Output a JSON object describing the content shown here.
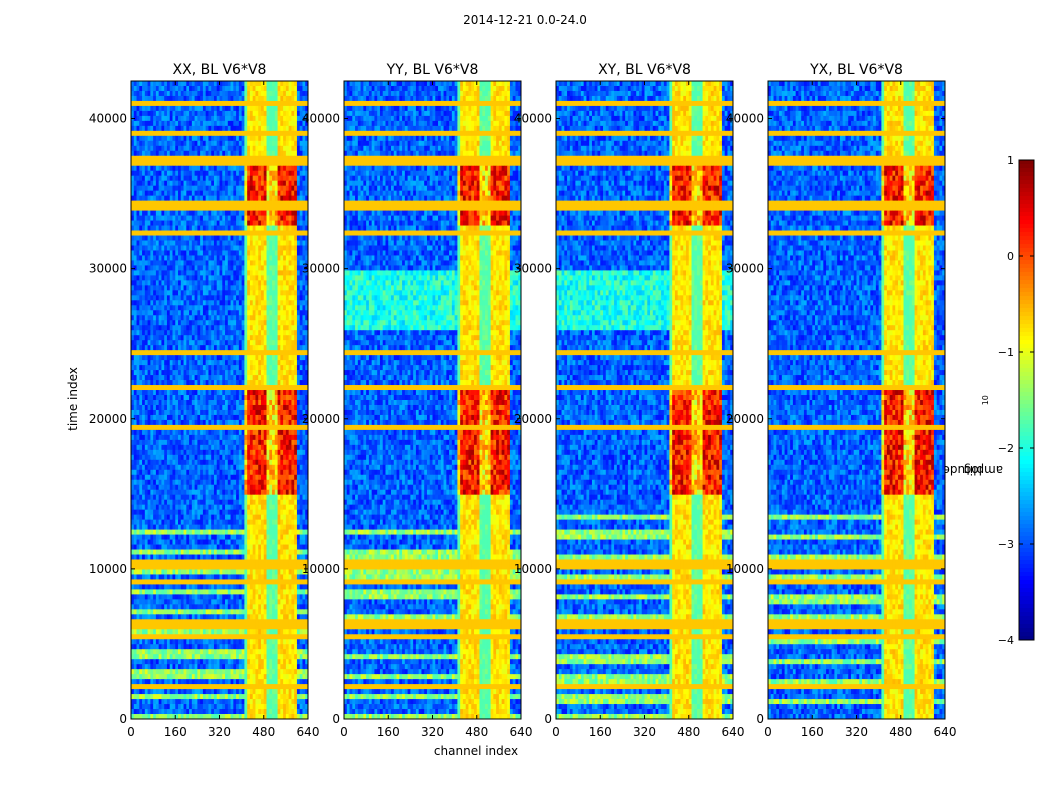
{
  "figure": {
    "suptitle": "2014-12-21 0.0-24.0",
    "xlabel": "channel index",
    "ylabel": "time index"
  },
  "chart_data": {
    "type": "heatmap",
    "title": "2014-12-21 0.0-24.0",
    "xlabel": "channel index",
    "ylabel": "time index",
    "xlim": [
      0,
      640
    ],
    "ylim": [
      0,
      42500
    ],
    "xticks": [
      0,
      160,
      320,
      480,
      640
    ],
    "yticks": [
      0,
      10000,
      20000,
      30000,
      40000
    ],
    "panels": [
      {
        "title": "XX, BL V6*V8",
        "polarization": "XX"
      },
      {
        "title": "YY, BL V6*V8",
        "polarization": "YY"
      },
      {
        "title": "XY, BL V6*V8",
        "polarization": "XY"
      },
      {
        "title": "YX, BL V6*V8",
        "polarization": "YX"
      }
    ],
    "colorbar": {
      "label": "log₁₀ amplitude",
      "label_base": "log",
      "label_sub": "10",
      "label_rest": " amplitude",
      "range": [
        -4,
        1
      ],
      "ticks": [
        1,
        0,
        -1,
        -2,
        -3,
        -4
      ],
      "tick_labels": [
        "1",
        "0",
        "−1",
        "−2",
        "−3",
        "−4"
      ],
      "colormap": "jet"
    },
    "rfi_band_channels": [
      410,
      600
    ],
    "strong_emission_time_ranges": [
      [
        15000,
        22000
      ],
      [
        33000,
        37000
      ]
    ]
  }
}
